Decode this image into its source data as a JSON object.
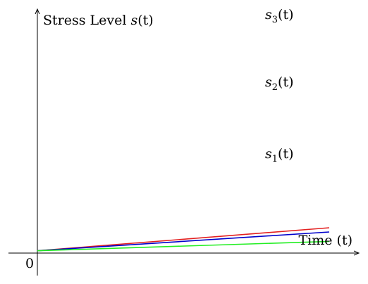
{
  "chart_data": {
    "type": "line",
    "ylabel": {
      "text": "Stress Level ",
      "func": "s",
      "arg": "(t)"
    },
    "xlabel": "Time (t)",
    "origin_label": "0",
    "intercept": 1,
    "x_range": [
      0,
      1
    ],
    "series": [
      {
        "name": {
          "base": "s",
          "sub": "3",
          "arg": "(t)"
        },
        "color": "#e32020",
        "x": [
          0,
          1
        ],
        "y": [
          1,
          10.8
        ]
      },
      {
        "name": {
          "base": "s",
          "sub": "2",
          "arg": "(t)"
        },
        "color": "#0000cc",
        "x": [
          0,
          1
        ],
        "y": [
          1,
          9
        ]
      },
      {
        "name": {
          "base": "s",
          "sub": "1",
          "arg": "(t)"
        },
        "color": "#22ee22",
        "x": [
          0,
          1
        ],
        "y": [
          1,
          5
        ]
      }
    ]
  }
}
